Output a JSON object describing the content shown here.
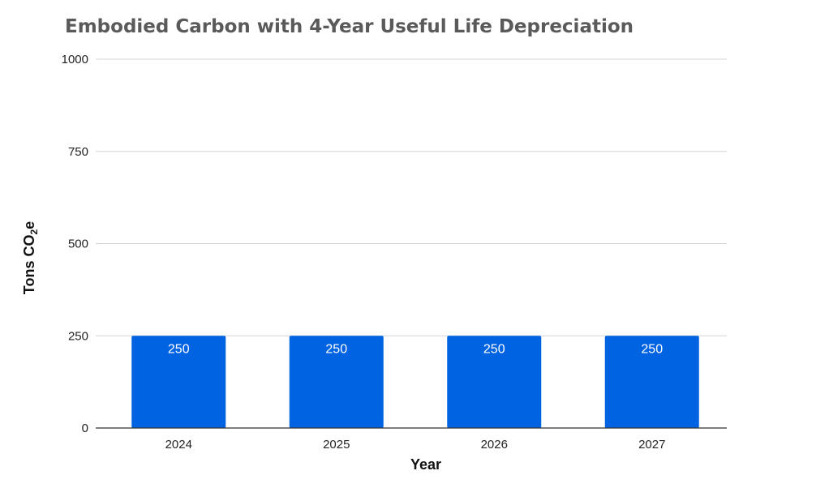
{
  "chart_data": {
    "type": "bar",
    "title": "Embodied Carbon with 4-Year Useful Life Depreciation",
    "xlabel": "Year",
    "ylabel_main": "Tons CO",
    "ylabel_sub": "2",
    "ylabel_tail": "e",
    "categories": [
      "2024",
      "2025",
      "2026",
      "2027"
    ],
    "values": [
      250,
      250,
      250,
      250
    ],
    "data_labels": [
      "250",
      "250",
      "250",
      "250"
    ],
    "ylim": [
      0,
      1000
    ],
    "yticks": [
      0,
      250,
      500,
      750,
      1000
    ],
    "ytick_labels": [
      "0",
      "250",
      "500",
      "750",
      "1000"
    ],
    "grid": true,
    "legend": "none",
    "bar_color": "#0063E1"
  }
}
